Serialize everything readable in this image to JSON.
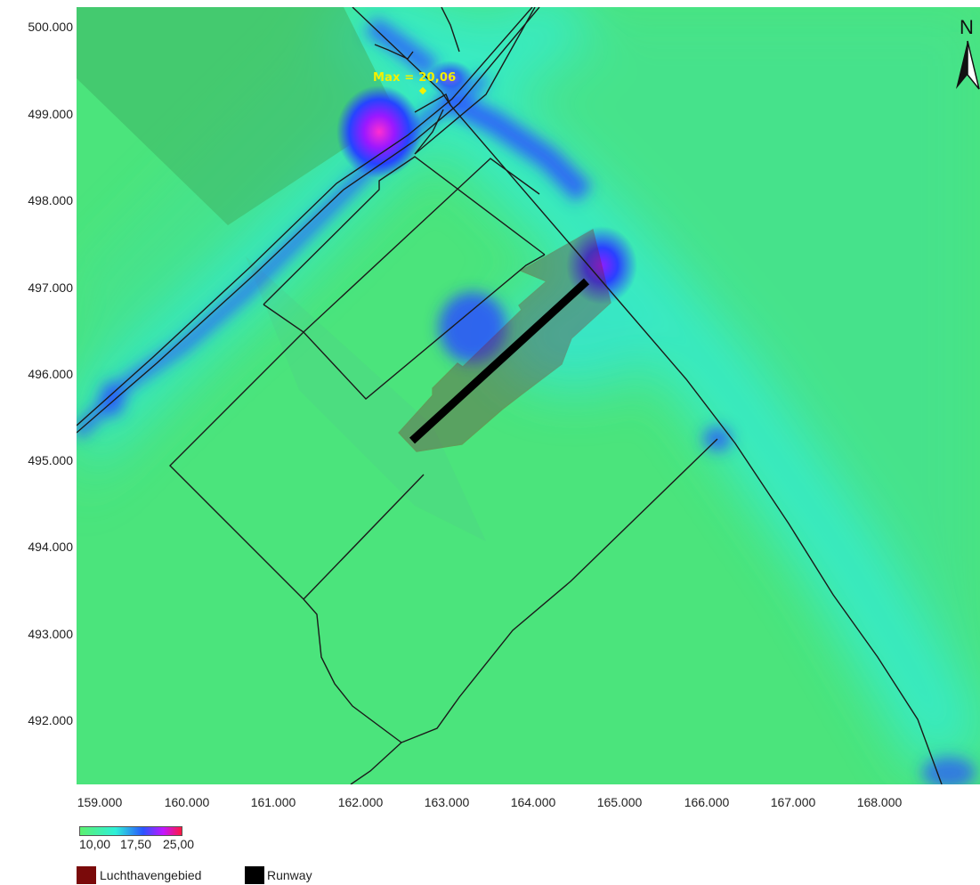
{
  "map": {
    "max_label": "Max = 20,06",
    "north_label": "N",
    "y_ticks": [
      "500.000",
      "499.000",
      "498.000",
      "497.000",
      "496.000",
      "495.000",
      "494.000",
      "493.000",
      "492.000"
    ],
    "x_ticks": [
      "159.000",
      "160.000",
      "161.000",
      "162.000",
      "163.000",
      "164.000",
      "165.000",
      "166.000",
      "167.000",
      "168.000"
    ],
    "colors": {
      "background": "#4be47c",
      "low": "#5cf070",
      "mid": "#2a55ff",
      "high": "#ff1740",
      "boundary": "#1a1a1a"
    }
  },
  "colorbar": {
    "min_label": "10,00",
    "mid_label": "17,50",
    "max_label": "25,00"
  },
  "legend": {
    "items": [
      {
        "label": "Luchthavengebied",
        "color": "#7a0a0a"
      },
      {
        "label": "Runway",
        "color": "#000000"
      }
    ]
  }
}
